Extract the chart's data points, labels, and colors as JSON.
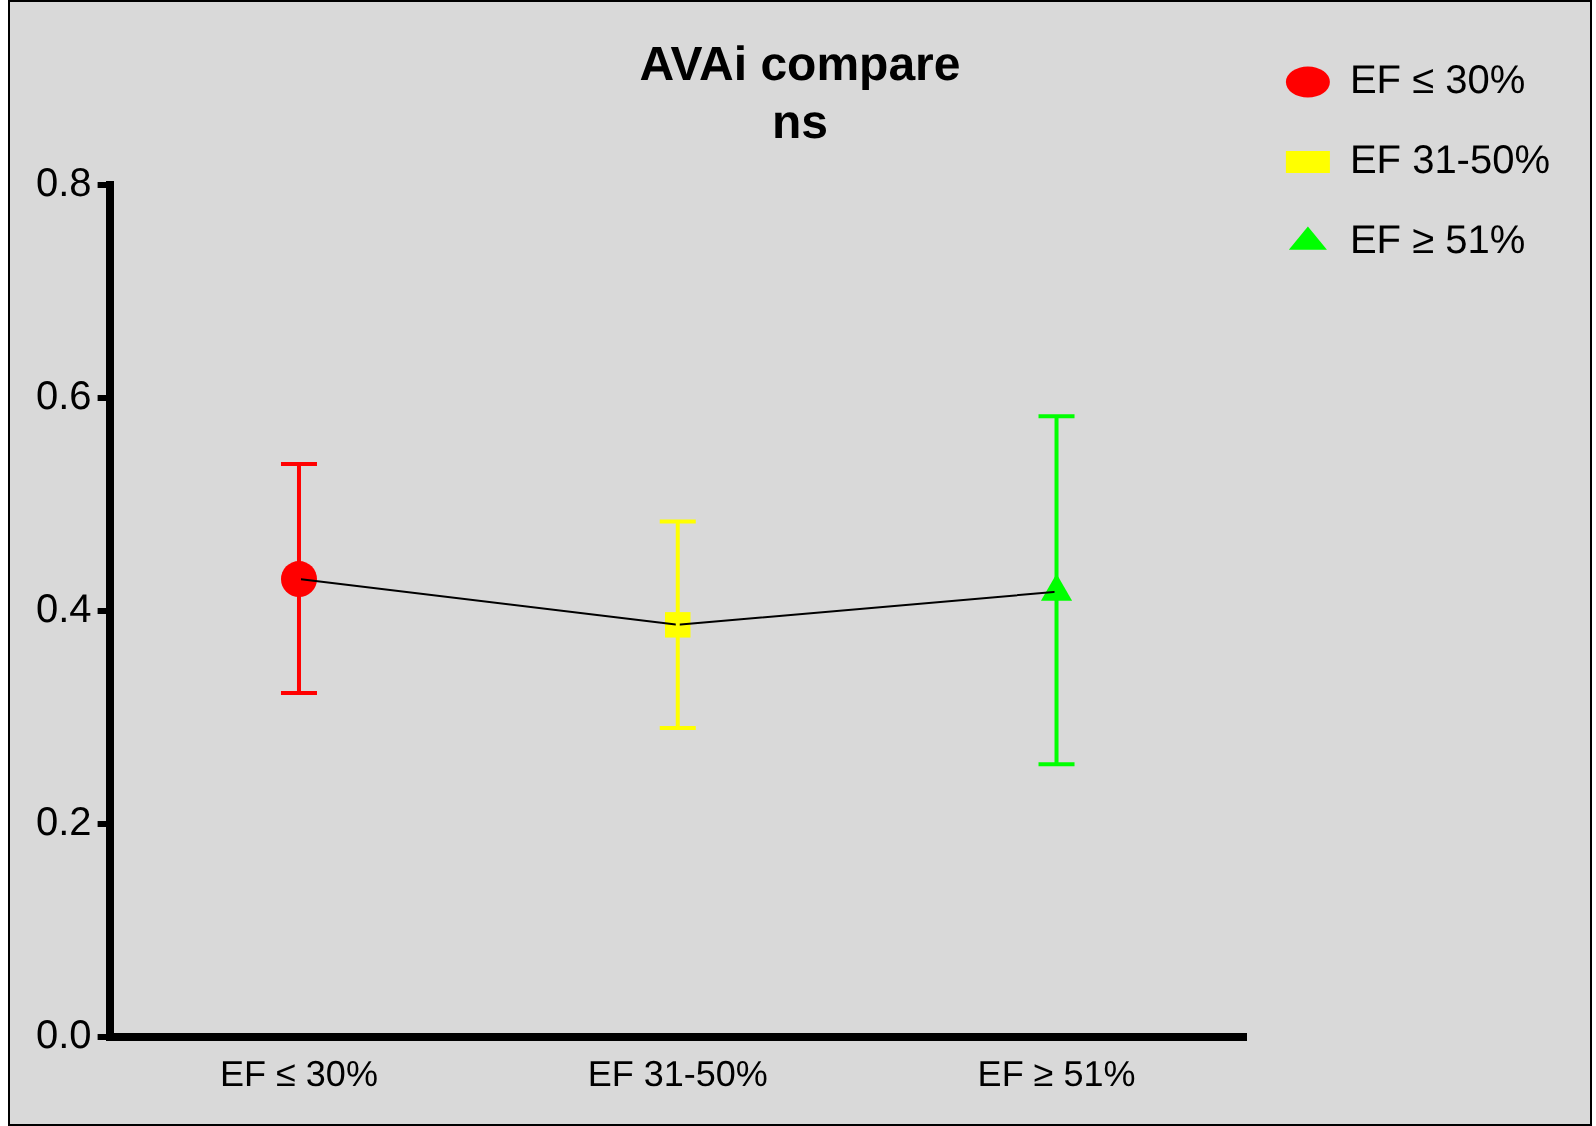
{
  "chart_data": {
    "type": "scatter",
    "title": "AVAi compare",
    "subtitle": "ns",
    "categories": [
      "EF ≤ 30%",
      "EF 31-50%",
      "EF ≥ 51%"
    ],
    "series": [
      {
        "type": "line",
        "color": "#000000",
        "marker": "none",
        "values": [
          0.43,
          0.387,
          0.418
        ]
      },
      {
        "name": "EF ≤ 30%",
        "color": "#ff0000",
        "marker": "circle",
        "values": [
          0.43,
          null,
          null
        ],
        "errors": [
          [
            0.323,
            0.538
          ],
          null,
          null
        ]
      },
      {
        "name": "EF 31-50%",
        "color": "#ffff00",
        "marker": "square",
        "values": [
          null,
          0.387,
          null
        ],
        "errors": [
          null,
          [
            0.29,
            0.484
          ],
          null
        ]
      },
      {
        "name": "EF ≥ 51%",
        "color": "#00ff00",
        "marker": "triangle",
        "values": [
          null,
          null,
          0.418
        ],
        "errors": [
          null,
          null,
          [
            0.256,
            0.583
          ]
        ]
      }
    ],
    "ylim": [
      0,
      0.8
    ],
    "yticks": [
      {
        "value": 0,
        "label": "0.0"
      },
      0.2,
      0.4,
      0.6,
      0.8
    ],
    "grid": false,
    "legend": "top right"
  }
}
